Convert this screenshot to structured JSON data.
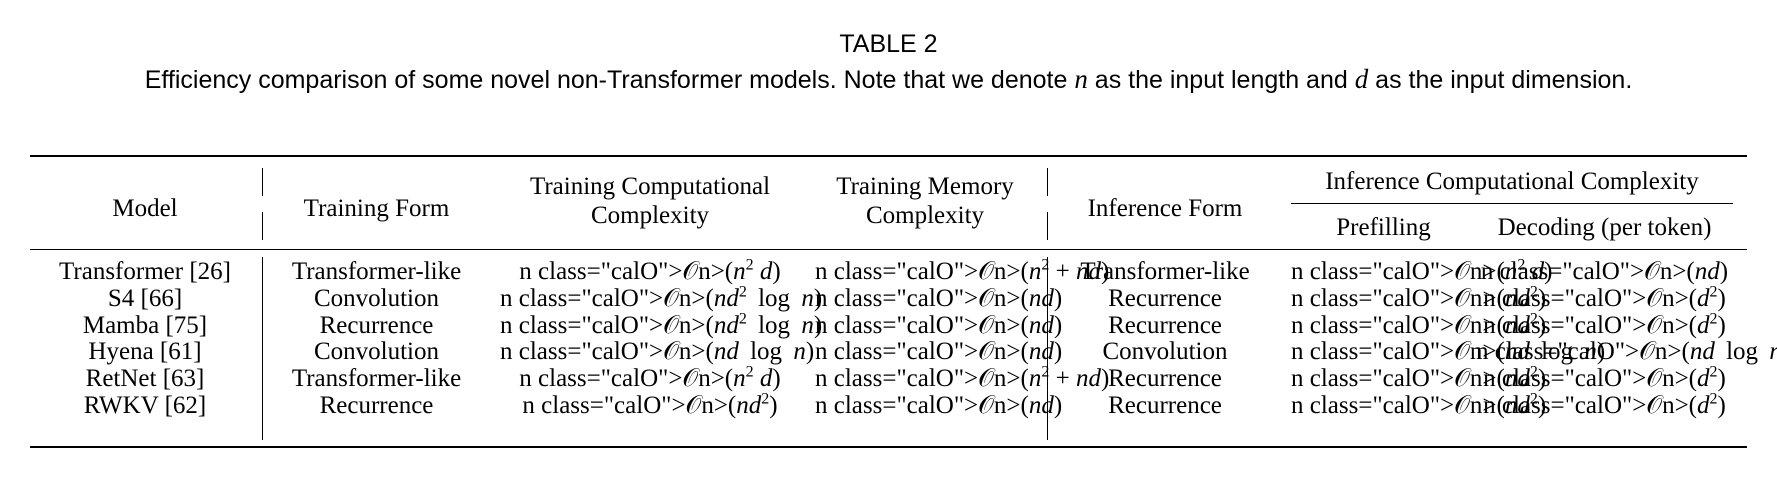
{
  "caption": {
    "label": "TABLE 2",
    "text_part1": "Efficiency comparison of some novel non-Transformer models. Note that we denote ",
    "var_n": "n",
    "text_part2": " as the input length and ",
    "var_d": "d",
    "text_part3": " as the input dimension."
  },
  "table": {
    "headers": {
      "model": "Model",
      "training_form": "Training Form",
      "training_comp": "Training Computational Complexity",
      "training_mem": "Training Memory Complexity",
      "inference_form": "Inference Form",
      "inference_comp": "Inference Computational Complexity",
      "prefilling": "Prefilling",
      "decoding": "Decoding (per token)"
    },
    "rows": [
      {
        "model": "Transformer [26]",
        "training_form": "Transformer-like",
        "training_comp": "O(n^2 d)",
        "training_mem": "O(n^2 + nd)",
        "inference_form": "Transformer-like",
        "prefilling": "O(n^2 d)",
        "decoding": "O(nd)"
      },
      {
        "model": "S4 [66]",
        "training_form": "Convolution",
        "training_comp": "O(nd^2 log n)",
        "training_mem": "O(nd)",
        "inference_form": "Recurrence",
        "prefilling": "O(nd^2)",
        "decoding": "O(d^2)"
      },
      {
        "model": "Mamba [75]",
        "training_form": "Recurrence",
        "training_comp": "O(nd^2 log n)",
        "training_mem": "O(nd)",
        "inference_form": "Recurrence",
        "prefilling": "O(nd^2)",
        "decoding": "O(d^2)"
      },
      {
        "model": "Hyena [61]",
        "training_form": "Convolution",
        "training_comp": "O(nd log n)",
        "training_mem": "O(nd)",
        "inference_form": "Convolution",
        "prefilling": "O(nd log n)",
        "decoding": "O(nd log n)"
      },
      {
        "model": "RetNet [63]",
        "training_form": "Transformer-like",
        "training_comp": "O(n^2 d)",
        "training_mem": "O(n^2 + nd)",
        "inference_form": "Recurrence",
        "prefilling": "O(nd^2)",
        "decoding": "O(d^2)"
      },
      {
        "model": "RWKV [62]",
        "training_form": "Recurrence",
        "training_comp": "O(nd^2)",
        "training_mem": "O(nd)",
        "inference_form": "Recurrence",
        "prefilling": "O(nd^2)",
        "decoding": "O(d^2)"
      }
    ]
  }
}
